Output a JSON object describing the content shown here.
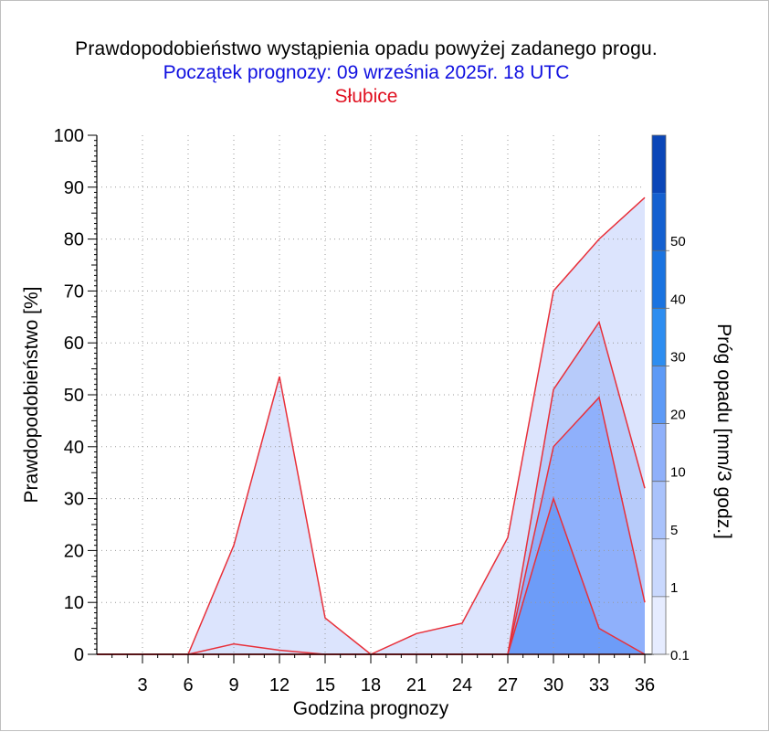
{
  "header": {
    "title": "Prawdopodobieństwo wystąpienia opadu powyżej zadanego progu.",
    "subtitle": "Początek prognozy: 09 września 2025r. 18 UTC",
    "station": "Słubice"
  },
  "colors": {
    "title": "#000000",
    "subtitle": "#1010e0",
    "station": "#e01020",
    "series_line": "#e8303a"
  },
  "chart_data": {
    "type": "area",
    "xlabel": "Godzina prognozy",
    "ylabel": "Prawdopodobieństwo [%]",
    "xlim": [
      0,
      36
    ],
    "ylim": [
      0,
      100
    ],
    "x": [
      0,
      3,
      6,
      9,
      12,
      15,
      18,
      21,
      24,
      27,
      30,
      33,
      36
    ],
    "x_ticks": [
      "3",
      "6",
      "9",
      "12",
      "15",
      "18",
      "21",
      "24",
      "27",
      "30",
      "33",
      "36"
    ],
    "y_ticks": [
      "0",
      "10",
      "20",
      "30",
      "40",
      "50",
      "60",
      "70",
      "80",
      "90",
      "100"
    ],
    "grid": true,
    "series": [
      {
        "threshold": "0.1",
        "fill": "#dce4fd",
        "values": [
          0,
          0,
          0,
          21,
          53.5,
          7,
          0,
          4,
          6,
          22.5,
          70,
          80,
          88
        ]
      },
      {
        "threshold": "1",
        "fill": "#d8e2fc",
        "values": [
          0,
          0,
          0,
          2,
          0.8,
          0,
          0,
          0,
          0,
          0,
          0,
          0,
          0
        ]
      },
      {
        "threshold": "5",
        "fill": "#b7cbfa",
        "values": [
          0,
          0,
          0,
          0,
          0,
          0,
          0,
          0,
          0,
          0,
          51,
          64,
          32
        ]
      },
      {
        "threshold": "10",
        "fill": "#8fb0fb",
        "values": [
          0,
          0,
          0,
          0,
          0,
          0,
          0,
          0,
          0,
          0,
          40,
          49.5,
          10
        ]
      },
      {
        "threshold": "20",
        "fill": "#6d9cf8",
        "values": [
          0,
          0,
          0,
          0,
          0,
          0,
          0,
          0,
          0,
          0,
          30,
          5,
          0
        ]
      }
    ],
    "colorbar": {
      "label": "Próg opadu [mm/3 godz.]",
      "ticks": [
        "0.1",
        "1",
        "5",
        "10",
        "20",
        "30",
        "40",
        "50"
      ],
      "colors": [
        "#e6ecff",
        "#c9d8fd",
        "#a9c2fb",
        "#8fb0fa",
        "#5d9af6",
        "#2d8df0",
        "#1a73e0",
        "#1460d0",
        "#0b46b8"
      ]
    }
  }
}
